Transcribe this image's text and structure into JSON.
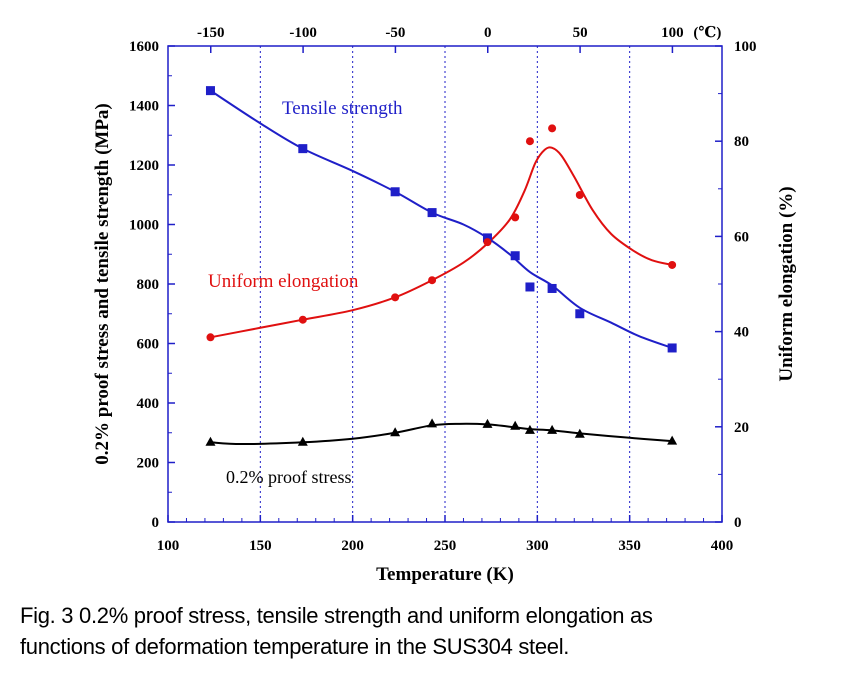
{
  "chart_data": {
    "type": "line",
    "x_axis": {
      "label": "Temperature (K)",
      "range": [
        100,
        400
      ],
      "ticks": [
        "100",
        "150",
        "200",
        "250",
        "300",
        "350",
        "400"
      ]
    },
    "x2_axis": {
      "ticks": [
        "-150",
        "-100",
        "-50",
        "0",
        "50",
        "100"
      ],
      "unit_label": "(℃)"
    },
    "y_axis": {
      "label": "0.2% proof stress and tensile strength (MPa)",
      "range": [
        0,
        1600
      ],
      "ticks": [
        "0",
        "200",
        "400",
        "600",
        "800",
        "1000",
        "1200",
        "1400",
        "1600"
      ]
    },
    "y2_axis": {
      "label": "Uniform elongation (%)",
      "range": [
        0,
        100
      ],
      "ticks": [
        "0",
        "20",
        "40",
        "60",
        "80",
        "100"
      ]
    },
    "grid": "vertical dotted lines at 150, 200, 250, 300, 350 K",
    "series": [
      {
        "name": "Tensile strength",
        "axis": "left",
        "color": "#1f1fc8",
        "marker": "square",
        "points": [
          [
            123,
            1450
          ],
          [
            173,
            1255
          ],
          [
            223,
            1110
          ],
          [
            243,
            1040
          ],
          [
            273,
            955
          ],
          [
            288,
            895
          ],
          [
            296,
            790
          ],
          [
            308,
            785
          ],
          [
            323,
            700
          ],
          [
            373,
            585
          ]
        ],
        "curve": [
          [
            123,
            1450
          ],
          [
            150,
            1340
          ],
          [
            173,
            1255
          ],
          [
            200,
            1180
          ],
          [
            223,
            1110
          ],
          [
            243,
            1040
          ],
          [
            260,
            1000
          ],
          [
            273,
            955
          ],
          [
            285,
            900
          ],
          [
            296,
            840
          ],
          [
            308,
            795
          ],
          [
            323,
            720
          ],
          [
            340,
            670
          ],
          [
            355,
            625
          ],
          [
            373,
            585
          ]
        ]
      },
      {
        "name": "Uniform elongation",
        "axis": "right",
        "color": "#e01010",
        "marker": "circle",
        "points": [
          [
            123,
            38.8
          ],
          [
            173,
            42.5
          ],
          [
            223,
            47.2
          ],
          [
            243,
            50.8
          ],
          [
            273,
            58.8
          ],
          [
            288,
            64
          ],
          [
            296,
            80
          ],
          [
            308,
            82.7
          ],
          [
            323,
            68.7
          ],
          [
            373,
            54
          ]
        ],
        "curve": [
          [
            123,
            38.8
          ],
          [
            150,
            40.8
          ],
          [
            173,
            42.5
          ],
          [
            200,
            44.5
          ],
          [
            223,
            47.2
          ],
          [
            243,
            50.8
          ],
          [
            260,
            54.5
          ],
          [
            273,
            58.5
          ],
          [
            285,
            63.5
          ],
          [
            293,
            69.5
          ],
          [
            299,
            75.5
          ],
          [
            304,
            78.2
          ],
          [
            308,
            78.6
          ],
          [
            313,
            77
          ],
          [
            320,
            72.5
          ],
          [
            330,
            65.5
          ],
          [
            340,
            60.5
          ],
          [
            352,
            57
          ],
          [
            362,
            55
          ],
          [
            373,
            54
          ]
        ]
      },
      {
        "name": "0.2% proof stress",
        "axis": "left",
        "color": "#000000",
        "marker": "triangle",
        "points": [
          [
            123,
            268
          ],
          [
            173,
            268
          ],
          [
            223,
            300
          ],
          [
            243,
            330
          ],
          [
            273,
            328
          ],
          [
            288,
            322
          ],
          [
            296,
            308
          ],
          [
            308,
            308
          ],
          [
            323,
            295
          ],
          [
            373,
            272
          ]
        ],
        "curve": [
          [
            123,
            268
          ],
          [
            140,
            262
          ],
          [
            173,
            268
          ],
          [
            200,
            280
          ],
          [
            223,
            300
          ],
          [
            243,
            325
          ],
          [
            258,
            330
          ],
          [
            273,
            328
          ],
          [
            288,
            318
          ],
          [
            296,
            312
          ],
          [
            308,
            308
          ],
          [
            323,
            298
          ],
          [
            350,
            283
          ],
          [
            373,
            272
          ]
        ]
      }
    ],
    "annotations": [
      {
        "text": "Tensile strength",
        "series": "Tensile strength"
      },
      {
        "text": "Uniform elongation",
        "series": "Uniform elongation"
      },
      {
        "text": "0.2% proof stress",
        "series": "0.2% proof stress"
      }
    ]
  },
  "caption": {
    "line1": "Fig. 3  0.2% proof stress, tensile strength and uniform elongation as",
    "line2": "functions of deformation temperature in the SUS304 steel."
  }
}
